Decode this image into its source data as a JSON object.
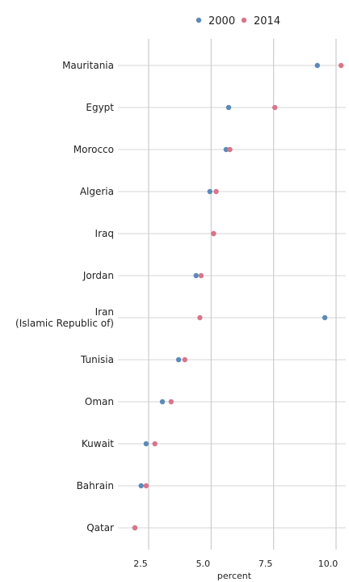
{
  "chart_data": {
    "type": "scatter",
    "xlabel": "percent",
    "x_ticks": [
      "2.5",
      "5.0",
      "7.5",
      "10.0"
    ],
    "x_tick_values": [
      2.5,
      5.0,
      7.5,
      10.0
    ],
    "xlim": [
      1.5,
      10.5
    ],
    "categories": [
      "Mauritania",
      "Egypt",
      "Morocco",
      "Algeria",
      "Iraq",
      "Jordan",
      "Iran\n(Islamic Republic of)",
      "Tunisia",
      "Oman",
      "Kuwait",
      "Bahrain",
      "Qatar"
    ],
    "series": [
      {
        "name": "2000",
        "color": "#5b8ab8",
        "values": [
          9.25,
          5.7,
          5.6,
          4.95,
          5.1,
          4.4,
          9.55,
          3.7,
          3.05,
          2.4,
          2.2,
          1.95
        ]
      },
      {
        "name": "2014",
        "color": "#d9758a",
        "values": [
          10.2,
          7.55,
          5.75,
          5.2,
          5.1,
          4.6,
          4.55,
          3.95,
          3.4,
          2.75,
          2.4,
          1.95
        ]
      }
    ],
    "legend_position": "top",
    "grid": true
  }
}
